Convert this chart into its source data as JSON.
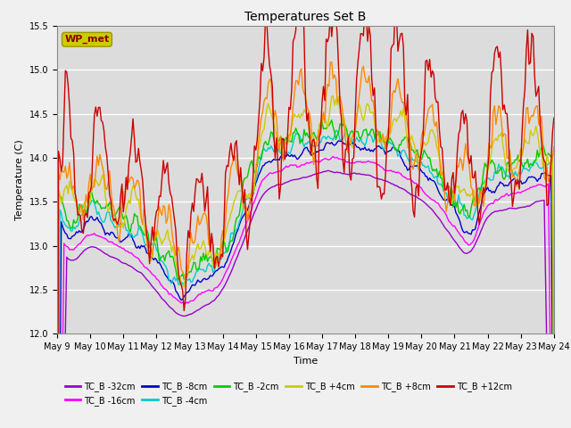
{
  "title": "Temperatures Set B",
  "xlabel": "Time",
  "ylabel": "Temperature (C)",
  "ylim": [
    12.0,
    15.5
  ],
  "xlim": [
    0,
    360
  ],
  "x_tick_labels": [
    "May 9",
    "May 10",
    "May 11",
    "May 12",
    "May 13",
    "May 14",
    "May 15",
    "May 16",
    "May 17",
    "May 18",
    "May 19",
    "May 20",
    "May 21",
    "May 22",
    "May 23",
    "May 24"
  ],
  "x_tick_positions": [
    0,
    24,
    48,
    72,
    96,
    120,
    144,
    168,
    192,
    216,
    240,
    264,
    288,
    312,
    336,
    360
  ],
  "y_ticks": [
    12.0,
    12.5,
    13.0,
    13.5,
    14.0,
    14.5,
    15.0,
    15.5
  ],
  "series": [
    {
      "label": "TC_B -32cm",
      "color": "#9900CC"
    },
    {
      "label": "TC_B -16cm",
      "color": "#FF00FF"
    },
    {
      "label": "TC_B -8cm",
      "color": "#0000CC"
    },
    {
      "label": "TC_B -4cm",
      "color": "#00CCCC"
    },
    {
      "label": "TC_B -2cm",
      "color": "#00CC00"
    },
    {
      "label": "TC_B +4cm",
      "color": "#CCCC00"
    },
    {
      "label": "TC_B +8cm",
      "color": "#FF8800"
    },
    {
      "label": "TC_B +12cm",
      "color": "#CC0000"
    }
  ],
  "wp_met_box_facecolor": "#CCCC00",
  "wp_met_text_color": "#880000",
  "plot_bg_color": "#DCDCDC",
  "fig_bg_color": "#F0F0F0",
  "grid_color": "#FFFFFF",
  "title_fontsize": 10,
  "axis_label_fontsize": 8,
  "tick_fontsize": 7,
  "legend_fontsize": 7,
  "linewidth": 1.0
}
